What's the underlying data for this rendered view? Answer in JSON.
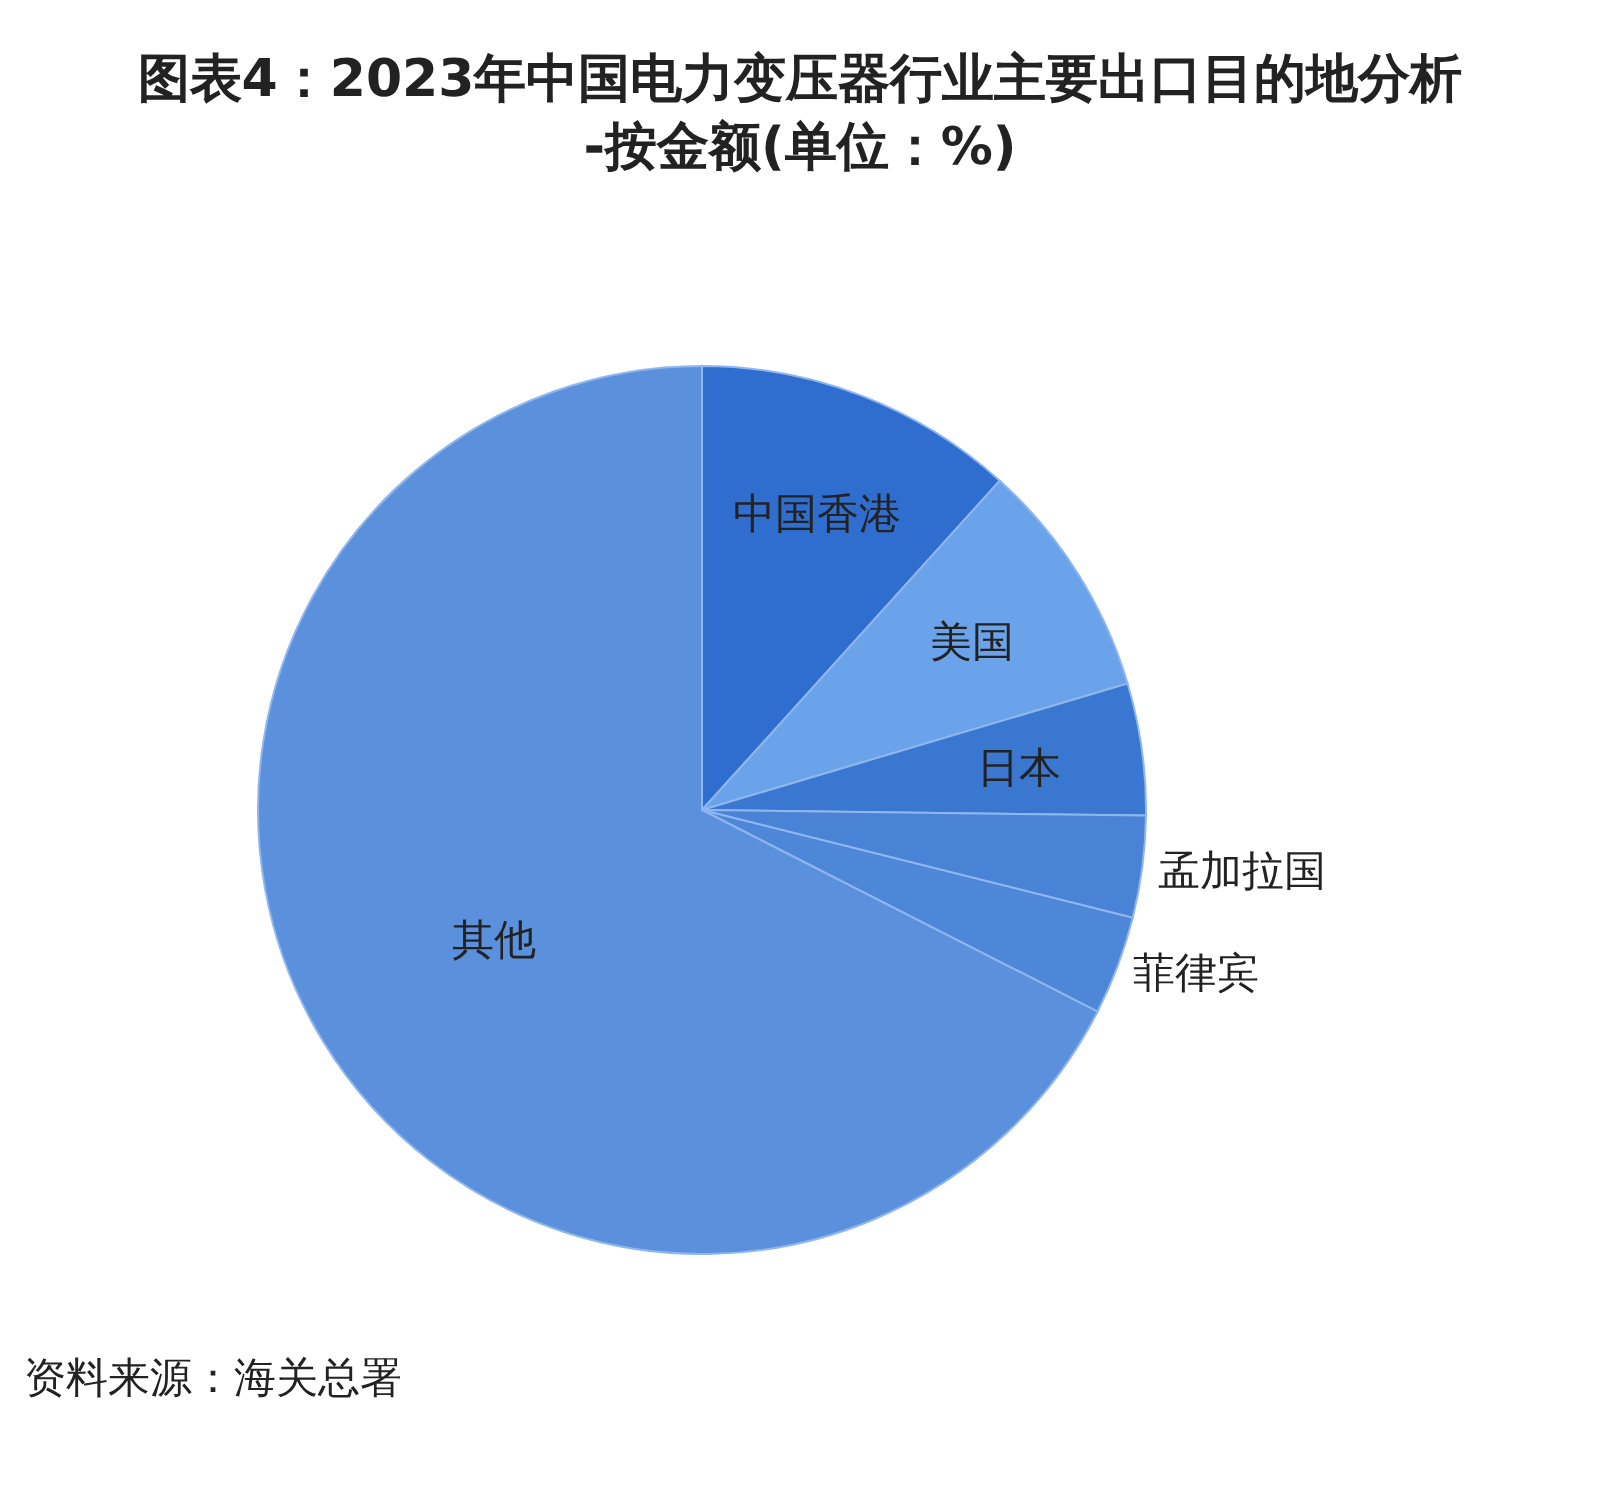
{
  "chart_data": {
    "type": "pie",
    "title": "图表4：2023年中国电力变压器行业主要出口目的地分析-按金额(单位：%)",
    "categories": [
      "中国香港",
      "美国",
      "日本",
      "孟加拉国",
      "菲律宾",
      "其他"
    ],
    "values": [
      11.7,
      8.7,
      4.8,
      3.7,
      3.6,
      67.5
    ],
    "colors": [
      "#2f6dcf",
      "#6aa3ea",
      "#3a77d0",
      "#4a82d5",
      "#4f87d8",
      "#5b90dc"
    ],
    "annotations": [
      "资料来源：海关总署"
    ]
  }
}
